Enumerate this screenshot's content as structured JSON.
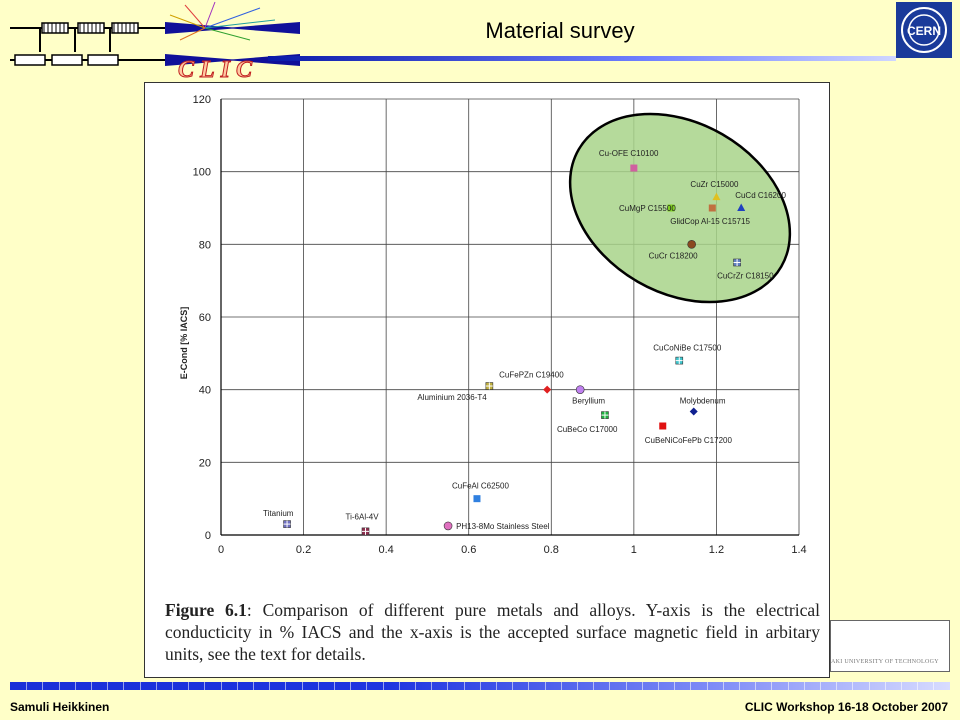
{
  "header": {
    "title": "Material survey",
    "logo_text": "CLIC",
    "cern_logo_text": "CERN"
  },
  "figure": {
    "caption_label": "Figure 6.1",
    "caption_text": ": Comparison of different pure metals and alloys. Y-axis is the electrical conducticity in % IACS and the x-axis is the accepted surface magnetic field in arbitary units, see the text for details.",
    "side_box_text": "AKI UNIVERSITY OF TECHNOLOGY"
  },
  "chart_data": {
    "type": "scatter",
    "title": "",
    "xlabel": "",
    "ylabel": "E-Cond [% IACS]",
    "xlim": [
      0,
      1.4
    ],
    "ylim": [
      0,
      120
    ],
    "xticks": [
      "0",
      "0.2",
      "0.4",
      "0.6",
      "0.8",
      "1",
      "1.2",
      "1.4"
    ],
    "yticks": [
      "0",
      "20",
      "40",
      "60",
      "80",
      "100",
      "120"
    ],
    "grid": true,
    "highlight": "green ellipse around high-conductivity copper alloys",
    "points": [
      {
        "label": "Titanium",
        "x": 0.16,
        "y": 3,
        "color": "#7070c0",
        "marker": "cross-square"
      },
      {
        "label": "Ti-6Al-4V",
        "x": 0.35,
        "y": 1,
        "color": "#903050",
        "marker": "cross-square"
      },
      {
        "label": "PH13-8Mo Stainless Steel",
        "x": 0.55,
        "y": 2.5,
        "color": "#e070c0",
        "marker": "circle"
      },
      {
        "label": "CuFeAl C62500",
        "x": 0.62,
        "y": 10,
        "color": "#3080e0",
        "marker": "square"
      },
      {
        "label": "Aluminium 2036-T4",
        "x": 0.65,
        "y": 41,
        "color": "#c0b040",
        "marker": "cross-square"
      },
      {
        "label": "CuFePZn C19400",
        "x": 0.79,
        "y": 40,
        "color": "#e02020",
        "marker": "diamond"
      },
      {
        "label": "Beryllium",
        "x": 0.87,
        "y": 40,
        "color": "#c080f0",
        "marker": "circle"
      },
      {
        "label": "CuBeCo C17000",
        "x": 0.93,
        "y": 33,
        "color": "#20b040",
        "marker": "cross-square"
      },
      {
        "label": "CuBeNiCoFePb C17200",
        "x": 1.07,
        "y": 30,
        "color": "#e01010",
        "marker": "square"
      },
      {
        "label": "CuCoNiBe C17500",
        "x": 1.11,
        "y": 48,
        "color": "#40c8d0",
        "marker": "cross-square"
      },
      {
        "label": "Molybdenum",
        "x": 1.145,
        "y": 34,
        "color": "#102090",
        "marker": "diamond"
      },
      {
        "label": "Cu-OFE C10100",
        "x": 1.0,
        "y": 101,
        "color": "#d060a0",
        "marker": "square"
      },
      {
        "label": "CuMgP C15500",
        "x": 1.09,
        "y": 90,
        "color": "#80d020",
        "marker": "square"
      },
      {
        "label": "CuZr C15000",
        "x": 1.2,
        "y": 93,
        "color": "#e0c020",
        "marker": "triangle"
      },
      {
        "label": "GlidCop Al-15 C15715",
        "x": 1.19,
        "y": 90,
        "color": "#c07040",
        "marker": "square"
      },
      {
        "label": "CuCd C16200",
        "x": 1.26,
        "y": 90,
        "color": "#2040c0",
        "marker": "triangle"
      },
      {
        "label": "CuCr C18200",
        "x": 1.14,
        "y": 80,
        "color": "#8a4a20",
        "marker": "circle"
      },
      {
        "label": "CuCrZr C18150",
        "x": 1.25,
        "y": 75,
        "color": "#6080c0",
        "marker": "cross-square"
      }
    ]
  },
  "footer": {
    "author": "Samuli Heikkinen",
    "event": "CLIC Workshop 16-18 October 2007"
  }
}
